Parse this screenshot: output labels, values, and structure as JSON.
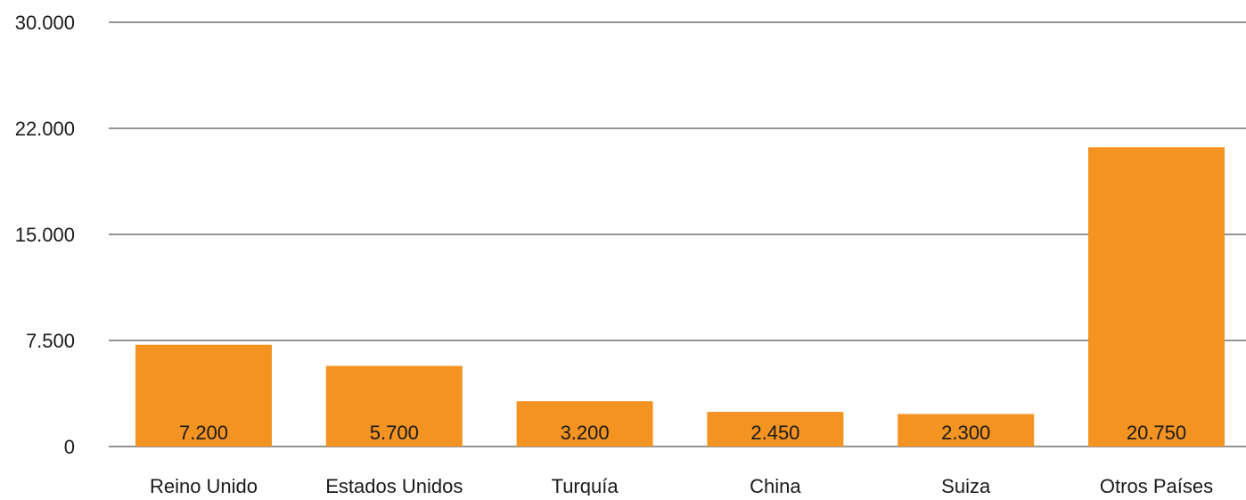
{
  "chart_data": {
    "type": "bar",
    "categories": [
      "Reino Unido",
      "Estados Unidos",
      "Turquía",
      "China",
      "Suiza",
      "Otros Países"
    ],
    "values": [
      7200,
      5700,
      3200,
      2450,
      2300,
      20750
    ],
    "value_labels": [
      "7.200",
      "5.700",
      "3.200",
      "2.450",
      "2.300",
      "20.750"
    ],
    "y_ticks": [
      0,
      7500,
      15000,
      22000,
      30000
    ],
    "y_tick_labels": [
      "0",
      "7.500",
      "15.000",
      "22.000",
      "30.000"
    ],
    "title": "",
    "xlabel": "",
    "ylabel": "",
    "grid": true,
    "legend": "none",
    "bar_color": "#F39322",
    "grid_color": "#555555"
  }
}
